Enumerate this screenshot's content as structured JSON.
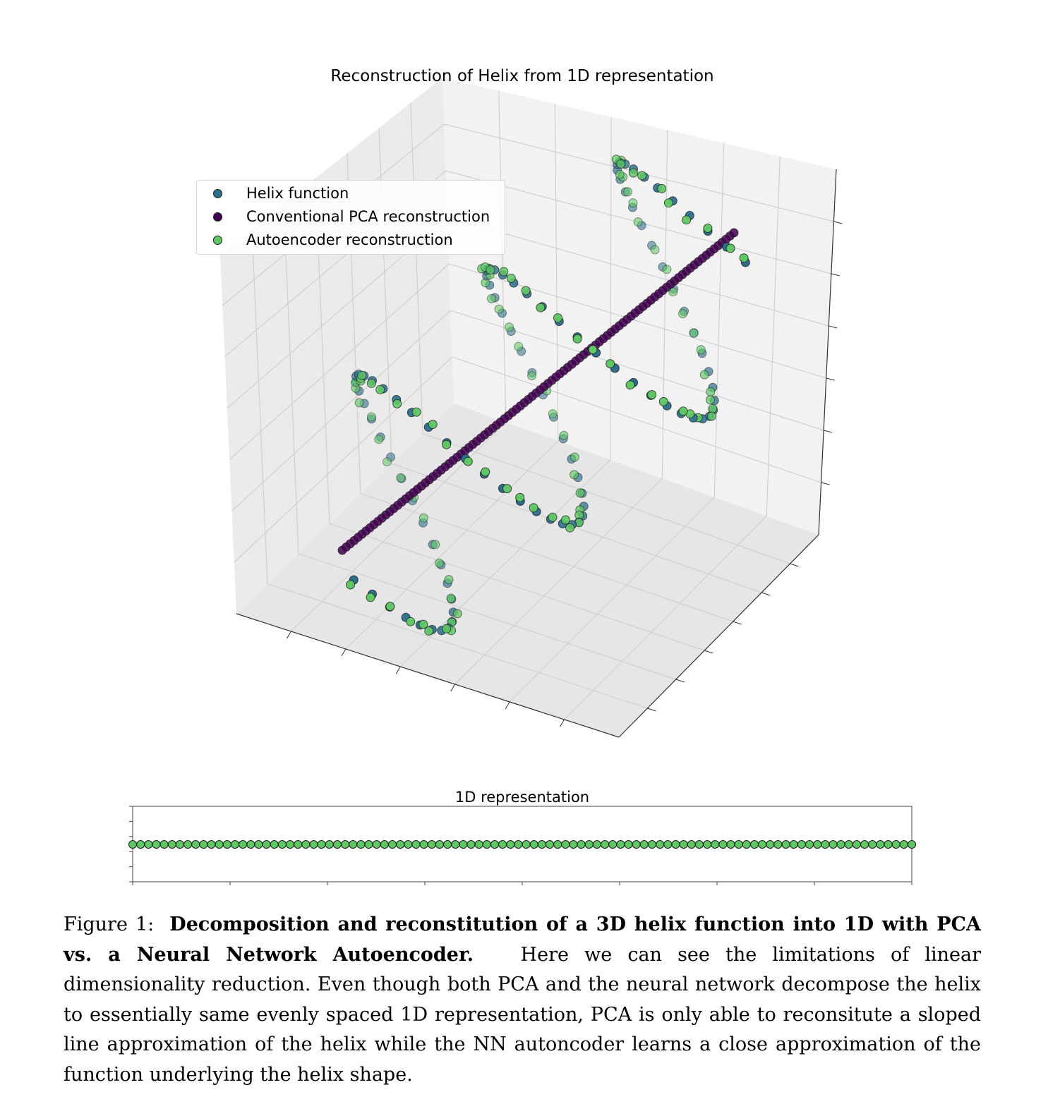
{
  "figure": {
    "title_3d": "Reconstruction of Helix from 1D representation",
    "title_1d": "1D representation",
    "legend": [
      {
        "label": "Helix function",
        "color": "#2b6f8e"
      },
      {
        "label": "Conventional PCA reconstruction",
        "color": "#440154"
      },
      {
        "label": "Autoencoder reconstruction",
        "color": "#5ec962"
      }
    ]
  },
  "caption": {
    "prefix": "Figure 1:",
    "bold": "Decomposition and reconstitution of a 3D helix function into 1D with PCA vs. a Neural Network Autoencoder.",
    "body": "Here we can see the limitations of linear dimensionality reduction. Even though both PCA and the neural network decompose the helix to essentially same evenly spaced 1D representation, PCA is only able to reconsitute a sloped line approximation of the helix while the NN autoncoder learns a close approximation of the function underlying the helix shape."
  },
  "chart_data": [
    {
      "type": "scatter",
      "projection": "3d",
      "title": "Reconstruction of Helix from 1D representation",
      "xlabel": "",
      "ylabel": "",
      "zlabel": "",
      "tick_labels_shown": false,
      "grid": true,
      "legend_placement": "upper-left",
      "series": [
        {
          "name": "Helix function",
          "color": "#2b6f8e",
          "shape": "helix",
          "turns": 3,
          "points": 100
        },
        {
          "name": "Conventional PCA reconstruction",
          "color": "#440154",
          "shape": "line",
          "points": 100
        },
        {
          "name": "Autoencoder reconstruction",
          "color": "#5ec962",
          "shape": "helix",
          "turns": 3,
          "points": 100
        }
      ]
    },
    {
      "type": "scatter",
      "title": "1D representation",
      "xlabel": "",
      "ylabel": "",
      "tick_labels_shown": false,
      "n_points": 100,
      "spacing": "even",
      "y": 0,
      "color": "#5ec962"
    }
  ]
}
